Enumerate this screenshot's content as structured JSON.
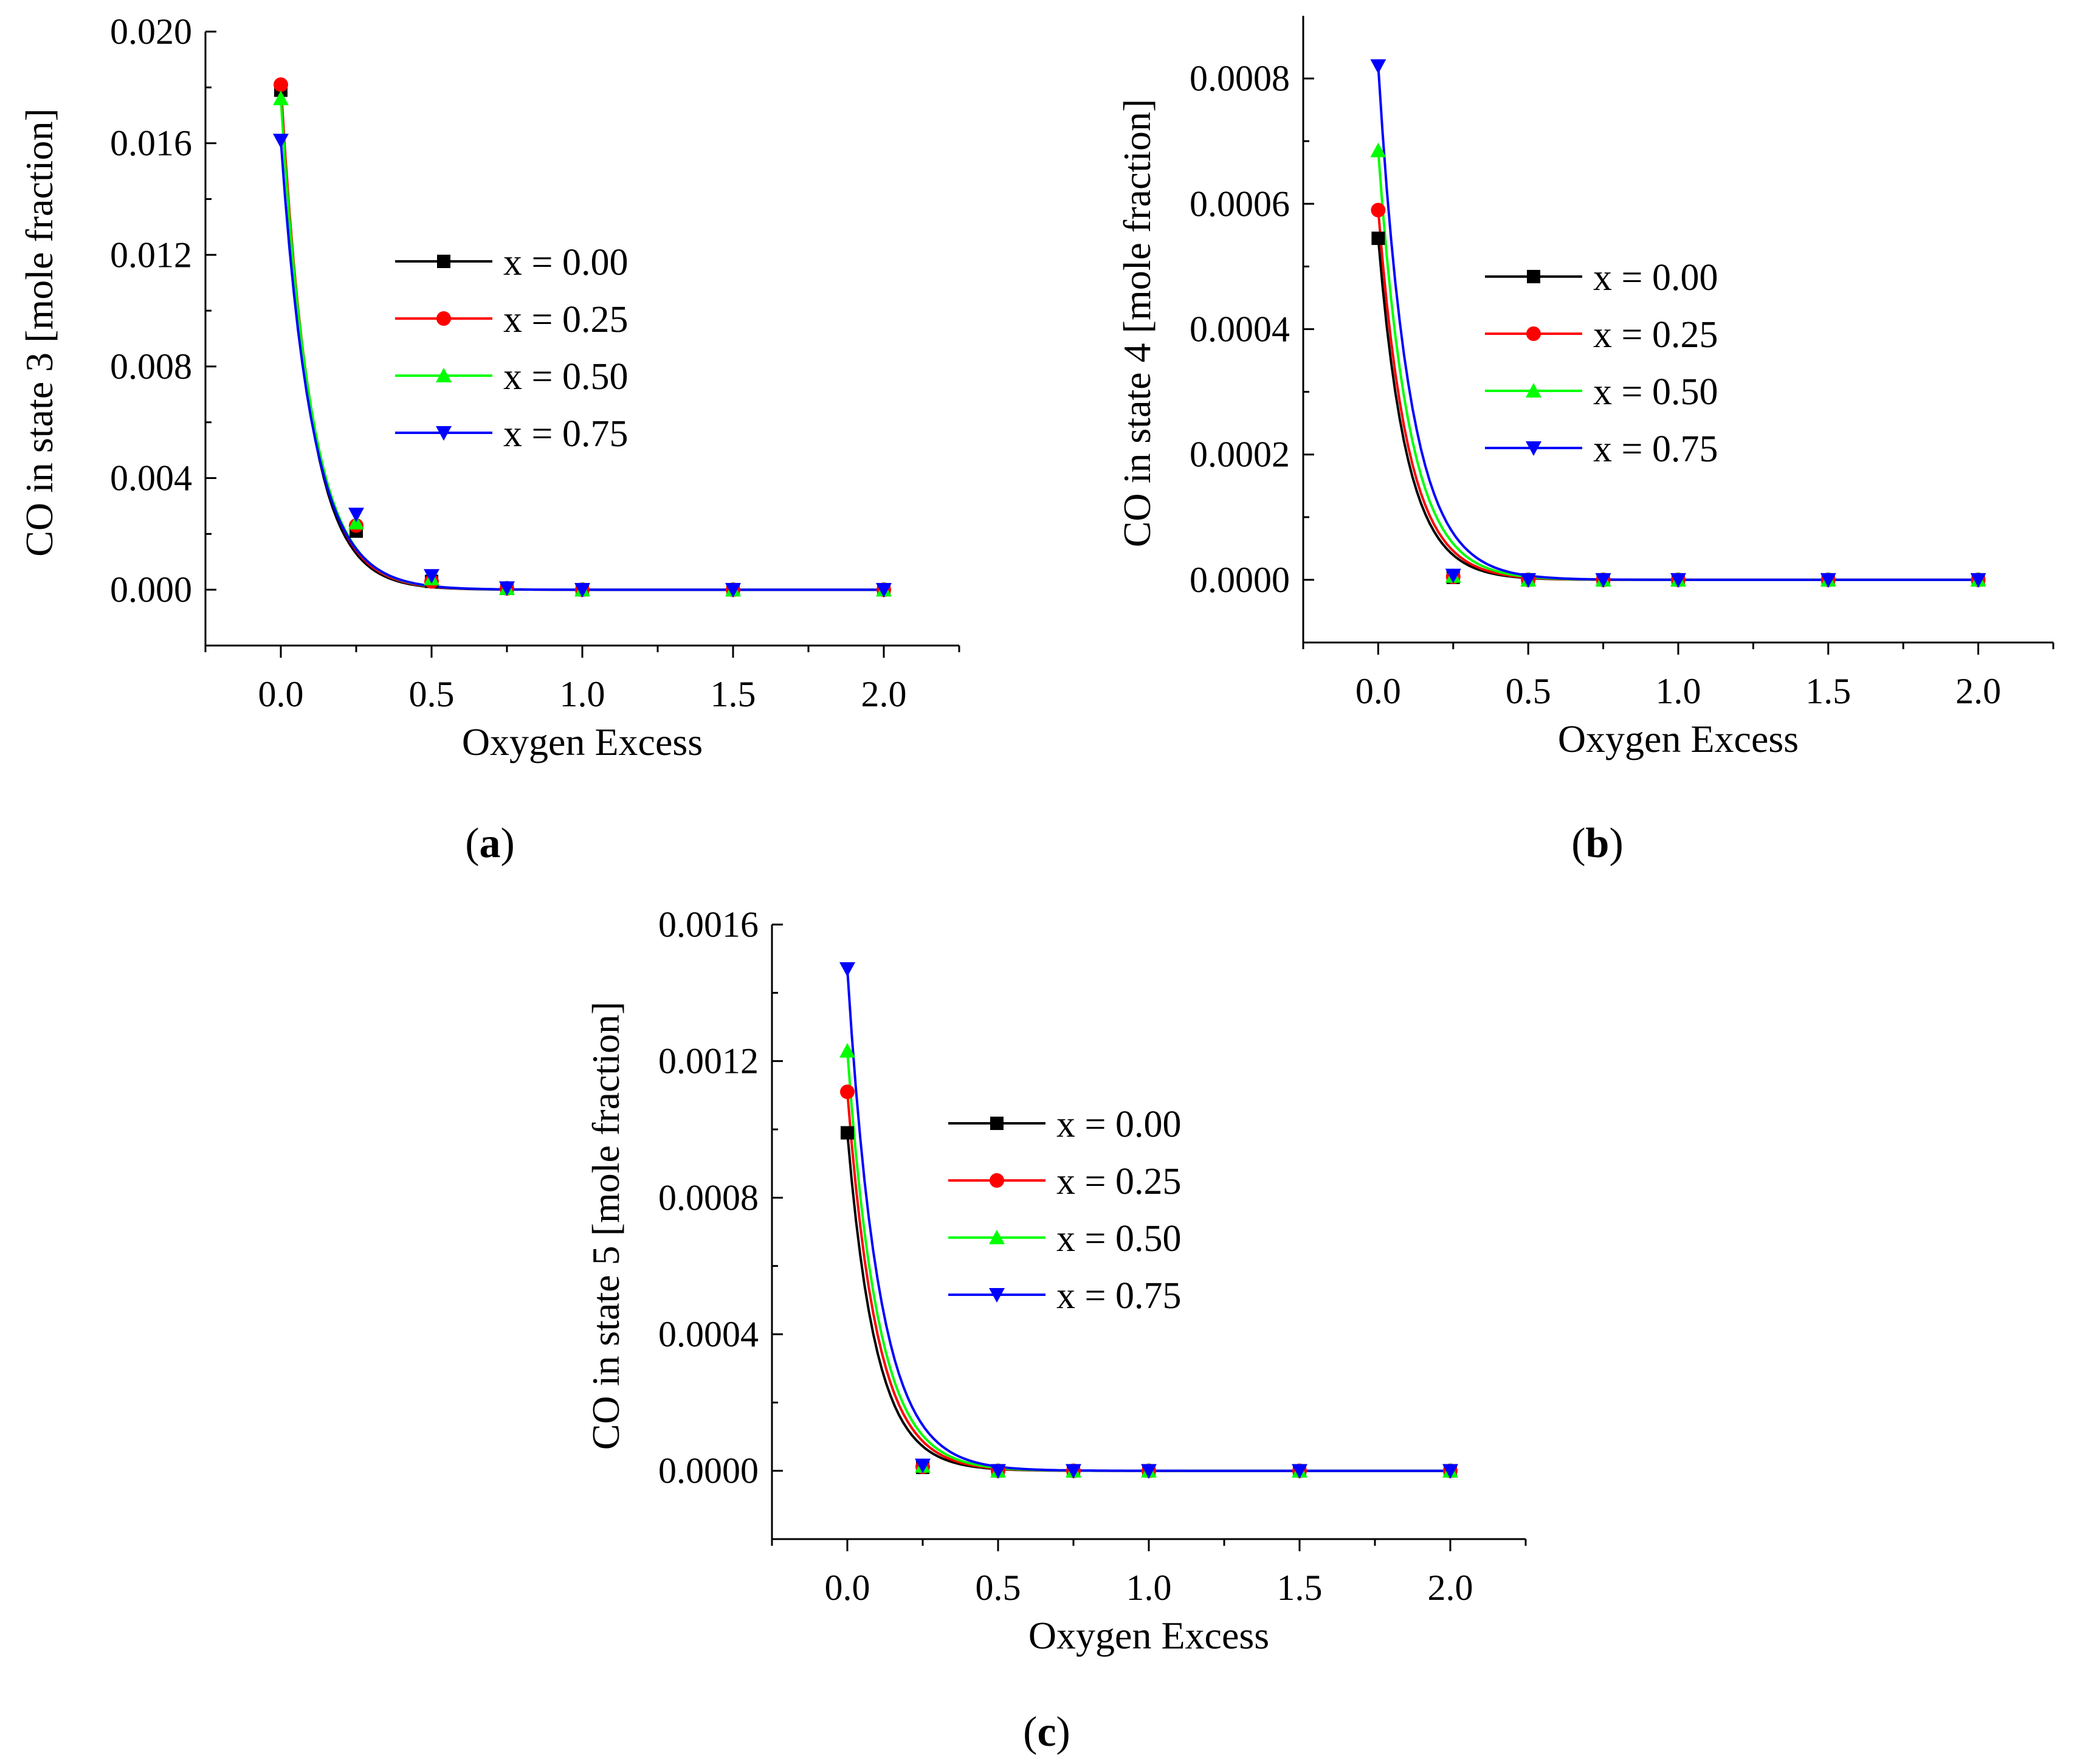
{
  "x_tick_labels": [
    "0.0",
    "0.5",
    "1.0",
    "1.5",
    "2.0"
  ],
  "chart_data": [
    {
      "id": "a",
      "type": "line",
      "caption_label": "a",
      "xlabel": "Oxygen Excess",
      "ylabel": "CO in state 3 [mole fraction]",
      "xlim": [
        -0.25,
        2.25
      ],
      "ylim": [
        -0.002,
        0.02
      ],
      "yticks": [
        0.0,
        0.004,
        0.008,
        0.012,
        0.016,
        0.02
      ],
      "ytick_labels": [
        "0.000",
        "0.004",
        "0.008",
        "0.012",
        "0.016",
        "0.020"
      ],
      "x": [
        0.0,
        0.25,
        0.5,
        0.75,
        1.0,
        1.5,
        2.0
      ],
      "series": [
        {
          "name": "x = 0.00",
          "marker": "square",
          "color": "#000000",
          "values": [
            0.0179,
            0.0021,
            0.0003,
            5e-05,
            0.0,
            0.0,
            0.0
          ]
        },
        {
          "name": "x = 0.25",
          "marker": "circle",
          "color": "#ff0000",
          "values": [
            0.0181,
            0.0023,
            0.0003,
            5e-05,
            0.0,
            0.0,
            0.0
          ]
        },
        {
          "name": "x = 0.50",
          "marker": "triangle-up",
          "color": "#00ff00",
          "values": [
            0.0176,
            0.0024,
            0.0004,
            5e-05,
            0.0,
            0.0,
            0.0
          ]
        },
        {
          "name": "x = 0.75",
          "marker": "triangle-down",
          "color": "#0000ff",
          "values": [
            0.0161,
            0.0027,
            0.0005,
            6e-05,
            0.0,
            0.0,
            0.0
          ]
        }
      ]
    },
    {
      "id": "b",
      "type": "line",
      "caption_label": "b",
      "xlabel": "Oxygen Excess",
      "ylabel": "CO in state 4 [mole fraction]",
      "xlim": [
        -0.25,
        2.25
      ],
      "ylim": [
        -0.0001,
        0.0009
      ],
      "yticks": [
        0.0,
        0.0002,
        0.0004,
        0.0006,
        0.0008
      ],
      "ytick_labels": [
        "0.0000",
        "0.0002",
        "0.0004",
        "0.0006",
        "0.0008"
      ],
      "x": [
        0.0,
        0.25,
        0.5,
        0.75,
        1.0,
        1.5,
        2.0
      ],
      "series": [
        {
          "name": "x = 0.00",
          "marker": "square",
          "color": "#000000",
          "values": [
            0.000545,
            4e-06,
            0.0,
            0.0,
            0.0,
            0.0,
            0.0
          ]
        },
        {
          "name": "x = 0.25",
          "marker": "circle",
          "color": "#ff0000",
          "values": [
            0.00059,
            5e-06,
            0.0,
            0.0,
            0.0,
            0.0,
            0.0
          ]
        },
        {
          "name": "x = 0.50",
          "marker": "triangle-up",
          "color": "#00ff00",
          "values": [
            0.000685,
            6e-06,
            0.0,
            0.0,
            0.0,
            0.0,
            0.0
          ]
        },
        {
          "name": "x = 0.75",
          "marker": "triangle-down",
          "color": "#0000ff",
          "values": [
            0.00082,
            7e-06,
            0.0,
            0.0,
            0.0,
            0.0,
            0.0
          ]
        }
      ]
    },
    {
      "id": "c",
      "type": "line",
      "caption_label": "c",
      "xlabel": "Oxygen Excess",
      "ylabel": "CO in state 5 [mole fraction]",
      "xlim": [
        -0.25,
        2.25
      ],
      "ylim": [
        -0.0002,
        0.0016
      ],
      "yticks": [
        0.0,
        0.0004,
        0.0008,
        0.0012,
        0.0016
      ],
      "ytick_labels": [
        "0.0000",
        "0.0004",
        "0.0008",
        "0.0012",
        "0.0016"
      ],
      "x": [
        0.0,
        0.25,
        0.5,
        0.75,
        1.0,
        1.5,
        2.0
      ],
      "series": [
        {
          "name": "x = 0.00",
          "marker": "square",
          "color": "#000000",
          "values": [
            0.00099,
            1e-05,
            0.0,
            0.0,
            0.0,
            0.0,
            0.0
          ]
        },
        {
          "name": "x = 0.25",
          "marker": "circle",
          "color": "#ff0000",
          "values": [
            0.00111,
            1.2e-05,
            0.0,
            0.0,
            0.0,
            0.0,
            0.0
          ]
        },
        {
          "name": "x = 0.50",
          "marker": "triangle-up",
          "color": "#00ff00",
          "values": [
            0.00123,
            1.4e-05,
            0.0,
            0.0,
            0.0,
            0.0,
            0.0
          ]
        },
        {
          "name": "x = 0.75",
          "marker": "triangle-down",
          "color": "#0000ff",
          "values": [
            0.00147,
            1.6e-05,
            0.0,
            0.0,
            0.0,
            0.0,
            0.0
          ]
        }
      ]
    }
  ]
}
